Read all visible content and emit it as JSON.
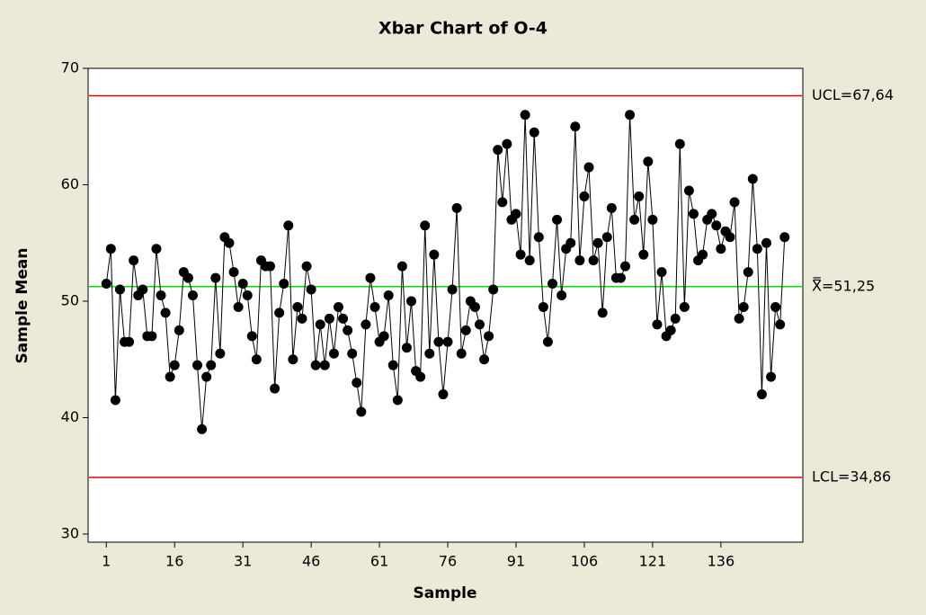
{
  "chart_data": {
    "type": "line",
    "title": "Xbar Chart of O-4",
    "x_label": "Sample",
    "y_label": "Sample Mean",
    "x": [
      1,
      2,
      3,
      4,
      5,
      6,
      7,
      8,
      9,
      10,
      11,
      12,
      13,
      14,
      15,
      16,
      17,
      18,
      19,
      20,
      21,
      22,
      23,
      24,
      25,
      26,
      27,
      28,
      29,
      30,
      31,
      32,
      33,
      34,
      35,
      36,
      37,
      38,
      39,
      40,
      41,
      42,
      43,
      44,
      45,
      46,
      47,
      48,
      49,
      50,
      51,
      52,
      53,
      54,
      55,
      56,
      57,
      58,
      59,
      60,
      61,
      62,
      63,
      64,
      65,
      66,
      67,
      68,
      69,
      70,
      71,
      72,
      73,
      74,
      75,
      76,
      77,
      78,
      79,
      80,
      81,
      82,
      83,
      84,
      85,
      86,
      87,
      88,
      89,
      90,
      91,
      92,
      93,
      94,
      95,
      96,
      97,
      98,
      99,
      100,
      101,
      102,
      103,
      104,
      105,
      106,
      107,
      108,
      109,
      110,
      111,
      112,
      113,
      114,
      115,
      116,
      117,
      118,
      119,
      120,
      121,
      122,
      123,
      124,
      125,
      126,
      127,
      128,
      129,
      130,
      131,
      132,
      133,
      134,
      135,
      136,
      137,
      138,
      139,
      140,
      141,
      142,
      143,
      144,
      145,
      146,
      147,
      148,
      149,
      150
    ],
    "series": [
      {
        "color": "#000000",
        "values": [
          51.5,
          54.5,
          41.5,
          51,
          46.5,
          46.5,
          53.5,
          50.5,
          51,
          47,
          47,
          54.5,
          50.5,
          49,
          43.5,
          44.5,
          47.5,
          52.5,
          52,
          50.5,
          44.5,
          39,
          43.5,
          44.5,
          52,
          45.5,
          55.5,
          55,
          52.5,
          49.5,
          51.5,
          50.5,
          47,
          45,
          53.5,
          53,
          53,
          42.5,
          49,
          51.5,
          56.5,
          45,
          49.5,
          48.5,
          53,
          51,
          44.5,
          48,
          44.5,
          48.5,
          45.5,
          49.5,
          48.5,
          47.5,
          45.5,
          43,
          40.5,
          48,
          52,
          49.5,
          46.5,
          47,
          50.5,
          44.5,
          41.5,
          53,
          46,
          50,
          44,
          43.5,
          56.5,
          45.5,
          54,
          46.5,
          42,
          46.5,
          51,
          58,
          45.5,
          47.5,
          50,
          49.5,
          48,
          45,
          47,
          51,
          63,
          58.5,
          63.5,
          57,
          57.5,
          54,
          66,
          53.5,
          64.5,
          55.5,
          49.5,
          46.5,
          51.5,
          57,
          50.5,
          54.5,
          55,
          65,
          53.5,
          59,
          61.5,
          53.5,
          55,
          49,
          55.5,
          58,
          52,
          52,
          53,
          66,
          57,
          59,
          54,
          62,
          57,
          48,
          52.5,
          47,
          47.5,
          48.5,
          63.5,
          49.5,
          59.5,
          57.5,
          53.5,
          54,
          57,
          57.5,
          56.5,
          54.5,
          56,
          55.5,
          58.5,
          48.5,
          49.5,
          52.5,
          60.5,
          54.5,
          42,
          55,
          43.5,
          49.5,
          48,
          55.5
        ]
      }
    ],
    "limits": [
      {
        "value": 67.64,
        "label": "UCL=67,64",
        "color": "#e00000"
      },
      {
        "value": 51.25,
        "label": "X̿=51,25",
        "color": "#00e000"
      },
      {
        "value": 34.86,
        "label": "LCL=34,86",
        "color": "#e00000"
      }
    ],
    "xlim": [
      -3,
      154
    ],
    "xticks": [
      1,
      16,
      31,
      46,
      61,
      76,
      91,
      106,
      121,
      136
    ],
    "ylim": [
      29.3,
      70
    ],
    "yticks": [
      30,
      40,
      50,
      60,
      70
    ]
  }
}
